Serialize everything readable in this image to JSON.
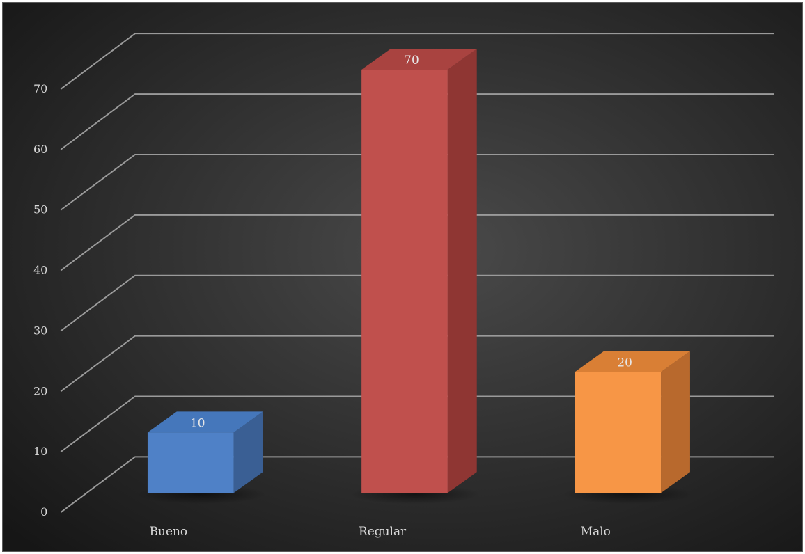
{
  "chart_data": {
    "type": "bar",
    "categories": [
      "Bueno",
      "Regular",
      "Malo"
    ],
    "values": [
      10,
      70,
      20
    ],
    "data_labels": [
      "10",
      "70",
      "20"
    ],
    "title": "",
    "xlabel": "",
    "ylabel": "",
    "ylim": [
      0,
      70
    ],
    "yticks": [
      "0",
      "10",
      "20",
      "30",
      "40",
      "50",
      "60",
      "70"
    ],
    "grid": true,
    "legend": "none",
    "style": "3d-column",
    "colors": {
      "background_center": "#4a4a4a",
      "background_edge": "#161616",
      "gridline": "#9a9a9a",
      "text": "#d9d9d9",
      "bars": [
        "#4f81c7",
        "#c0504d",
        "#f79646"
      ],
      "bar_sides": [
        "#3a5f94",
        "#8f3633",
        "#b8692d"
      ],
      "bar_tops": [
        "#4577bb",
        "#a94340",
        "#d97f35"
      ]
    }
  }
}
